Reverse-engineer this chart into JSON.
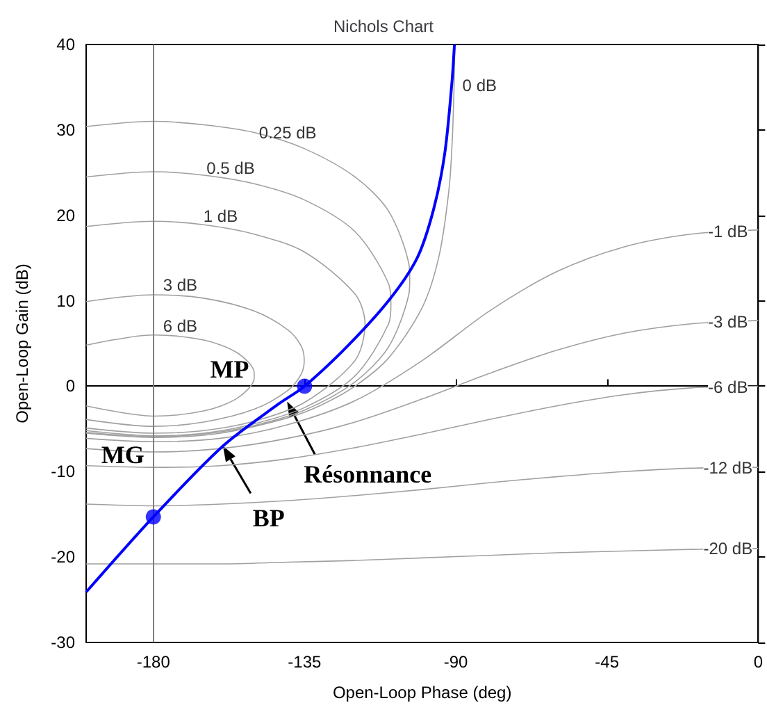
{
  "chart_data": {
    "type": "line",
    "title": "Nichols Chart",
    "xlabel": "Open-Loop Phase (deg)",
    "ylabel": "Open-Loop Gain (dB)",
    "xlim": [
      -200,
      0
    ],
    "xticks": [
      -180,
      -135,
      -90,
      -45,
      0
    ],
    "ylim": [
      -30,
      40
    ],
    "yticks": [
      -30,
      -20,
      -10,
      0,
      10,
      20,
      30,
      40
    ],
    "grid": false,
    "series": [
      {
        "color": "#0000ff",
        "marker": "none",
        "line_style": "solid",
        "x": [
          -200,
          -180,
          -159.3,
          -142.8,
          -135,
          -122.2,
          -109.8,
          -101.5,
          -96.6,
          -93.3,
          -91.2,
          -90.4
        ],
        "values": [
          -24.1,
          -15.3,
          -7,
          -2.1,
          0,
          4.7,
          10.1,
          15,
          20.7,
          27.2,
          35.3,
          40
        ]
      },
      {
        "type": "scatter",
        "color": "#0000ff",
        "marker": "circle",
        "x": [
          -180,
          -135
        ],
        "values": [
          -15.3,
          0
        ]
      },
      {
        "color": "#a0a0a0",
        "marker": "none",
        "line_style": "solid",
        "x": [
          -200,
          -180,
          -160,
          -140,
          -130,
          -120,
          -110,
          -100,
          -95,
          -92,
          -91,
          -90.5,
          -90.3
        ],
        "values": [
          -5.5,
          -6,
          -5.5,
          -3.7,
          -2.2,
          0,
          3.3,
          9.2,
          15.2,
          23.1,
          29.2,
          35.2,
          39.6
        ]
      },
      {
        "color": "#a0a0a0",
        "marker": "none",
        "line_style": "solid",
        "x": [
          -200,
          -180,
          -165,
          -150,
          -135,
          -120,
          -110,
          -104,
          -103.7,
          -104,
          -110,
          -120,
          -135,
          -150,
          -165,
          -180,
          -200
        ],
        "values": [
          30.4,
          31,
          30.6,
          29.7,
          27.8,
          24.5,
          20.5,
          14.4,
          12.5,
          10.7,
          4.6,
          0.5,
          -2.8,
          -4.6,
          -5.6,
          -5.9,
          -5.4
        ]
      },
      {
        "color": "#a0a0a0",
        "marker": "none",
        "line_style": "solid",
        "x": [
          -200,
          -180,
          -165,
          -150,
          -135,
          -120,
          -110,
          -109.3,
          -110,
          -120,
          -135,
          -150,
          -165,
          -180,
          -200
        ],
        "values": [
          24.5,
          25.1,
          24.7,
          23.7,
          21.8,
          18.1,
          12,
          9.6,
          7.3,
          1.2,
          -2.5,
          -4.4,
          -5.5,
          -5.8,
          -5.2
        ]
      },
      {
        "color": "#a0a0a0",
        "marker": "none",
        "line_style": "solid",
        "x": [
          -200,
          -180,
          -165,
          -150,
          -135,
          -120,
          -117,
          -120,
          -135,
          -150,
          -165,
          -180,
          -200
        ],
        "values": [
          18.7,
          19.3,
          18.9,
          17.8,
          15.7,
          10.8,
          7.3,
          3,
          -1.9,
          -4.1,
          -5.2,
          -5.5,
          -4.9
        ]
      },
      {
        "color": "#a0a0a0",
        "marker": "none",
        "line_style": "solid",
        "x": [
          -200,
          -180,
          -165,
          -150,
          -140,
          -136,
          -135.1,
          -136,
          -140,
          -150,
          -165,
          -180,
          -200
        ],
        "values": [
          9.9,
          10.7,
          10.3,
          8.8,
          6.6,
          4.7,
          3,
          1.4,
          -0.5,
          -2.7,
          -4.2,
          -4.7,
          -3.9
        ]
      },
      {
        "color": "#a0a0a0",
        "marker": "none",
        "line_style": "solid",
        "x": [
          -200,
          -180,
          -165,
          -155,
          -150,
          -150,
          -155,
          -165,
          -180,
          -200
        ],
        "values": [
          4.8,
          6,
          5.4,
          3.9,
          1.6,
          0.9,
          -1.4,
          -2.9,
          -3.5,
          -2.3
        ]
      },
      {
        "color": "#a0a0a0",
        "marker": "none",
        "line_style": "solid",
        "x": [
          -200,
          -180,
          -160,
          -140,
          -120,
          -100,
          -80,
          -60,
          -40,
          -20,
          0
        ],
        "values": [
          -6.1,
          -6.5,
          -6.1,
          -4.5,
          -1.7,
          3,
          8.8,
          13.4,
          16.3,
          17.8,
          18.3
        ]
      },
      {
        "color": "#a0a0a0",
        "marker": "none",
        "line_style": "solid",
        "x": [
          -200,
          -180,
          -160,
          -140,
          -120,
          -100,
          -80,
          -60,
          -40,
          -20,
          0
        ],
        "values": [
          -7.3,
          -7.7,
          -7.3,
          -6.1,
          -4.2,
          -1.5,
          1.5,
          4.2,
          6.2,
          7.3,
          7.7
        ]
      },
      {
        "color": "#a0a0a0",
        "marker": "none",
        "line_style": "solid",
        "x": [
          -200,
          -180,
          -160,
          -140,
          -120,
          -100,
          -80,
          -60,
          -40,
          -20,
          0
        ],
        "values": [
          -9.3,
          -9.5,
          -9.3,
          -8.5,
          -7.2,
          -5.6,
          -3.9,
          -2.3,
          -1,
          -0.2,
          0
        ]
      },
      {
        "color": "#a0a0a0",
        "marker": "none",
        "line_style": "solid",
        "x": [
          -200,
          -180,
          -160,
          -140,
          -120,
          -100,
          -80,
          -60,
          -40,
          -20,
          0
        ],
        "values": [
          -13.8,
          -14,
          -13.8,
          -13.4,
          -12.8,
          -12.1,
          -11.3,
          -10.6,
          -10,
          -9.6,
          -9.5
        ]
      },
      {
        "color": "#a0a0a0",
        "marker": "none",
        "line_style": "solid",
        "x": [
          -200,
          -180,
          -160,
          -140,
          -120,
          -100,
          -80,
          -60,
          -40,
          -20,
          0
        ],
        "values": [
          -20.8,
          -20.8,
          -20.8,
          -20.6,
          -20.4,
          -20.1,
          -19.8,
          -19.5,
          -19.3,
          -19.1,
          -19
        ]
      }
    ],
    "ref_lines": [
      {
        "axis": "x",
        "value": -180,
        "color": "#808080"
      }
    ],
    "annotations": [
      {
        "text": "0 dB",
        "x": -90.5,
        "y": 35.2
      },
      {
        "text": "0.25 dB",
        "x": -140,
        "y": 28.4
      },
      {
        "text": "0.5 dB",
        "x": -157,
        "y": 24.2
      },
      {
        "text": "1 dB",
        "x": -160,
        "y": 18.6
      },
      {
        "text": "3 dB",
        "x": -172,
        "y": 10.5
      },
      {
        "text": "6 dB",
        "x": -172,
        "y": 5.7
      },
      {
        "text": "-1 dB",
        "x": -9,
        "y": 18.1
      },
      {
        "text": "-3 dB",
        "x": -9,
        "y": 7.5
      },
      {
        "text": "-6 dB",
        "x": -9,
        "y": -0.1
      },
      {
        "text": "-12 dB",
        "x": -9,
        "y": -9.55
      },
      {
        "text": "-20 dB",
        "x": -9,
        "y": -19.05
      },
      {
        "text": "MP",
        "x": -135,
        "y": 0
      },
      {
        "text": "MG",
        "x": -180,
        "y": -8
      },
      {
        "text": "BP",
        "x": -159.3,
        "y": -7
      },
      {
        "text": "Résonnance",
        "x": -140.2,
        "y": -1.8
      }
    ]
  }
}
